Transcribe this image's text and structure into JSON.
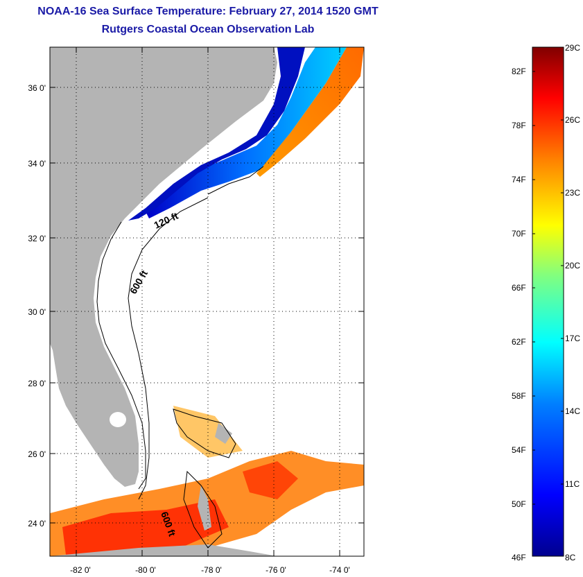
{
  "title": {
    "line1": "NOAA-16 Sea Surface Temperature:  February 27, 2014 1520 GMT",
    "line2": "Rutgers Coastal Ocean Observation Lab"
  },
  "map": {
    "lat_ticks": [
      "36 0'",
      "34 0'",
      "32 0'",
      "30 0'",
      "28 0'",
      "26 0'",
      "24 0'"
    ],
    "lon_ticks": [
      "-82 0'",
      "-80 0'",
      "-78 0'",
      "-76 0'",
      "-74 0'"
    ],
    "contour_labels": [
      "120 ft",
      "600 ft",
      "600 ft"
    ],
    "land_color": "#b4b4b4",
    "no_data_color": "#ffffff"
  },
  "colorbar": {
    "fahrenheit_labels": [
      "82F",
      "78F",
      "74F",
      "70F",
      "66F",
      "62F",
      "58F",
      "54F",
      "50F",
      "46F"
    ],
    "celsius_labels": [
      "29C",
      "26C",
      "23C",
      "20C",
      "17C",
      "14C",
      "11C",
      "8C"
    ],
    "colors": [
      "#00008f",
      "#0000ff",
      "#0080ff",
      "#00ffff",
      "#80ff80",
      "#ffff00",
      "#ff8000",
      "#ff0000",
      "#800000"
    ]
  }
}
